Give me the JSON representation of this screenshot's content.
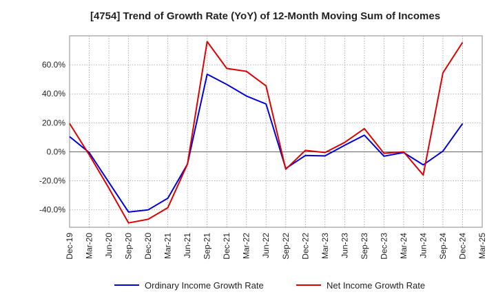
{
  "chart_data": {
    "type": "line",
    "title": "[4754]  Trend of Growth Rate (YoY) of 12-Month Moving Sum of Incomes",
    "xlabel": "",
    "ylabel": "",
    "x": [
      "Dec-19",
      "Mar-20",
      "Jun-20",
      "Sep-20",
      "Dec-20",
      "Mar-21",
      "Jun-21",
      "Sep-21",
      "Dec-21",
      "Mar-22",
      "Jun-22",
      "Sep-22",
      "Dec-22",
      "Mar-23",
      "Jun-23",
      "Sep-23",
      "Dec-23",
      "Mar-24",
      "Jun-24",
      "Sep-24",
      "Dec-24",
      "Mar-25"
    ],
    "ylim": [
      -52,
      80
    ],
    "yticks": [
      -40,
      -20,
      0,
      20,
      40,
      60
    ],
    "ytick_labels": [
      "-40.0%",
      "-20.0%",
      "0.0%",
      "20.0%",
      "40.0%",
      "60.0%"
    ],
    "grid": true,
    "legend_position": "bottom",
    "series": [
      {
        "name": "Ordinary Income Growth Rate",
        "color": "#0000dd",
        "values": [
          10.5,
          -0.5,
          -21.0,
          -41.5,
          -40.0,
          -32.0,
          -8.5,
          53.5,
          46.5,
          38.5,
          33.0,
          -11.5,
          -2.5,
          -2.8,
          4.5,
          11.5,
          -3.0,
          -0.5,
          -9.0,
          0.5,
          19.5,
          null
        ]
      },
      {
        "name": "Net Income Growth Rate",
        "color": "#dd0000",
        "values": [
          19.5,
          -2.0,
          -25.0,
          -49.0,
          -46.5,
          -38.5,
          -8.5,
          76.0,
          57.5,
          55.5,
          45.5,
          -12.0,
          1.0,
          -0.5,
          6.5,
          16.0,
          -1.0,
          0.0,
          -16.0,
          54.5,
          75.5,
          null
        ]
      }
    ]
  }
}
